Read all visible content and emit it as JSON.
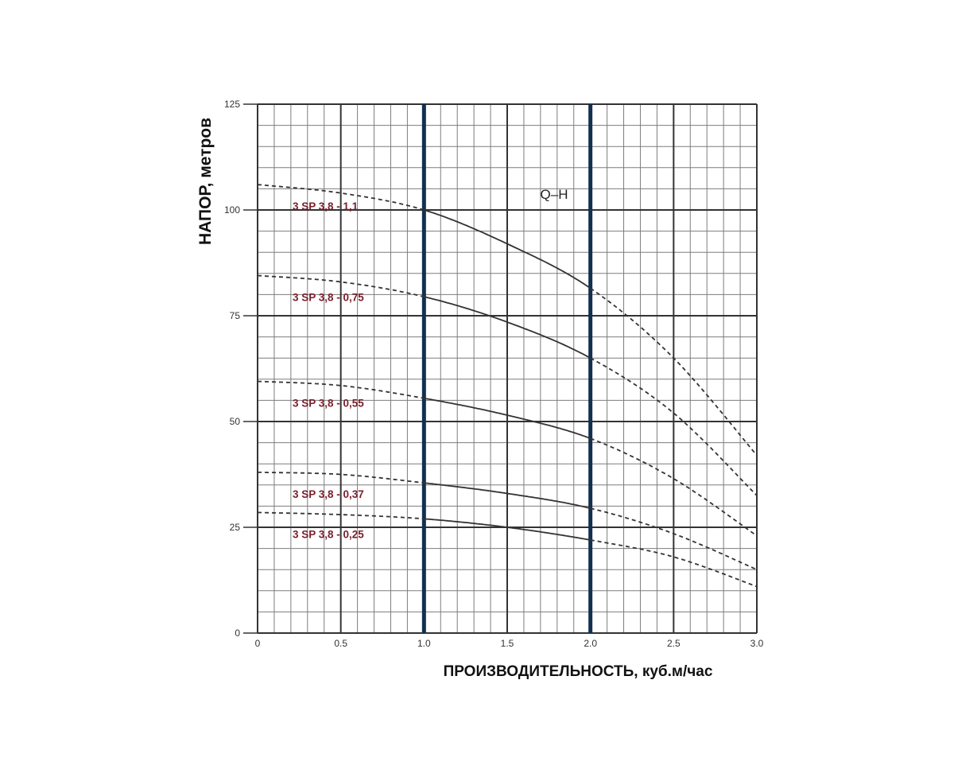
{
  "chart_data": {
    "type": "line",
    "xlabel": "ПРОИЗВОДИТЕЛЬНОСТЬ, куб.м/час",
    "ylabel": "НАПОР, метров",
    "xlim": [
      0,
      3.0
    ],
    "ylim": [
      0,
      125
    ],
    "x_ticks": [
      0,
      0.5,
      1.0,
      1.5,
      2.0,
      2.5,
      3.0
    ],
    "x_tick_labels": [
      "0",
      "0.5",
      "1.0",
      "1.5",
      "2.0",
      "2.5",
      "3.0"
    ],
    "y_ticks": [
      0,
      25,
      50,
      75,
      100,
      125
    ],
    "y_tick_labels": [
      "0",
      "25",
      "50",
      "75",
      "100",
      "125"
    ],
    "grid": true,
    "grid_minor_step": {
      "x": 0.1,
      "y": 5
    },
    "working_range": [
      1.0,
      2.0
    ],
    "annotation": "Q–H",
    "colors": {
      "curve": "#333333",
      "label": "#7a1f2b",
      "working_line": "#12304f",
      "grid_major": "#333333",
      "grid_minor": "#7d7d7d"
    },
    "series": [
      {
        "name": "3 SP 3,8 - 1,1",
        "x": [
          0,
          0.5,
          1.0,
          1.5,
          2.0,
          2.5,
          3.0
        ],
        "y": [
          106,
          104,
          100,
          92,
          81.5,
          65,
          42
        ]
      },
      {
        "name": "3 SP 3,8 - 0,75",
        "x": [
          0,
          0.5,
          1.0,
          1.5,
          2.0,
          2.5,
          3.0
        ],
        "y": [
          84.5,
          83,
          79.5,
          73.5,
          65,
          52,
          32.5
        ]
      },
      {
        "name": "3 SP 3,8 - 0,55",
        "x": [
          0,
          0.5,
          1.0,
          1.5,
          2.0,
          2.5,
          3.0
        ],
        "y": [
          59.5,
          58.5,
          55.5,
          51.5,
          46,
          36.5,
          23
        ]
      },
      {
        "name": "3 SP 3,8 - 0,37",
        "x": [
          0,
          0.5,
          1.0,
          1.5,
          2.0,
          2.5,
          3.0
        ],
        "y": [
          38,
          37.5,
          35.5,
          33,
          29.5,
          23.5,
          15
        ]
      },
      {
        "name": "3 SP 3,8 - 0,25",
        "x": [
          0,
          0.5,
          1.0,
          1.5,
          2.0,
          2.5,
          3.0
        ],
        "y": [
          28.5,
          28,
          27,
          25,
          22,
          18,
          11
        ]
      }
    ]
  }
}
